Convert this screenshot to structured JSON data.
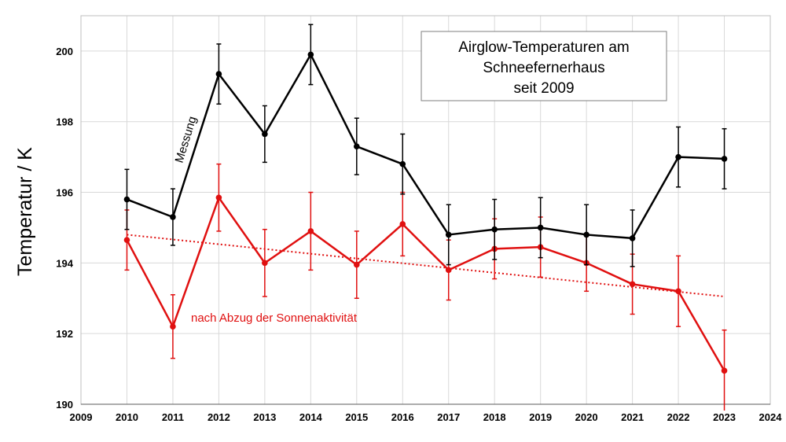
{
  "chart_data": {
    "type": "line",
    "title_lines": [
      "Airglow-Temperaturen am",
      "Schneefernerhaus",
      "seit 2009"
    ],
    "xlabel": "",
    "ylabel": "Temperatur / K",
    "xlim": [
      2009,
      2024
    ],
    "ylim": [
      190,
      201
    ],
    "x_ticks": [
      2009,
      2010,
      2011,
      2012,
      2013,
      2014,
      2015,
      2016,
      2017,
      2018,
      2019,
      2020,
      2021,
      2022,
      2023,
      2024
    ],
    "y_ticks": [
      190,
      192,
      194,
      196,
      198,
      200
    ],
    "grid": true,
    "legend": "none",
    "x": [
      2010,
      2011,
      2012,
      2013,
      2014,
      2015,
      2016,
      2017,
      2018,
      2019,
      2020,
      2021,
      2022,
      2023
    ],
    "series": [
      {
        "name": "Messung",
        "color": "#000000",
        "values": [
          195.8,
          195.3,
          199.35,
          197.65,
          199.9,
          197.3,
          196.8,
          194.8,
          194.95,
          195.0,
          194.8,
          194.7,
          197.0,
          196.95
        ],
        "errors": [
          0.85,
          0.8,
          0.85,
          0.8,
          0.85,
          0.8,
          0.85,
          0.85,
          0.85,
          0.85,
          0.85,
          0.8,
          0.85,
          0.85
        ]
      },
      {
        "name": "nach Abzug der Sonnenaktivität",
        "color": "#e01010",
        "values": [
          194.65,
          192.2,
          195.85,
          194.0,
          194.9,
          193.95,
          195.1,
          193.8,
          194.4,
          194.45,
          194.0,
          193.4,
          193.2,
          190.95
        ],
        "errors": [
          0.85,
          0.9,
          0.95,
          0.95,
          1.1,
          0.95,
          0.9,
          0.85,
          0.85,
          0.85,
          0.8,
          0.85,
          1.0,
          1.15
        ]
      }
    ],
    "trendline": {
      "series": "nach Abzug der Sonnenaktivität",
      "style": "dotted",
      "color": "#e01010",
      "x": [
        2010,
        2023
      ],
      "y": [
        194.8,
        193.05
      ]
    },
    "annotations": {
      "messung": "Messung",
      "corrected": "nach Abzug der Sonnenaktivität"
    }
  }
}
